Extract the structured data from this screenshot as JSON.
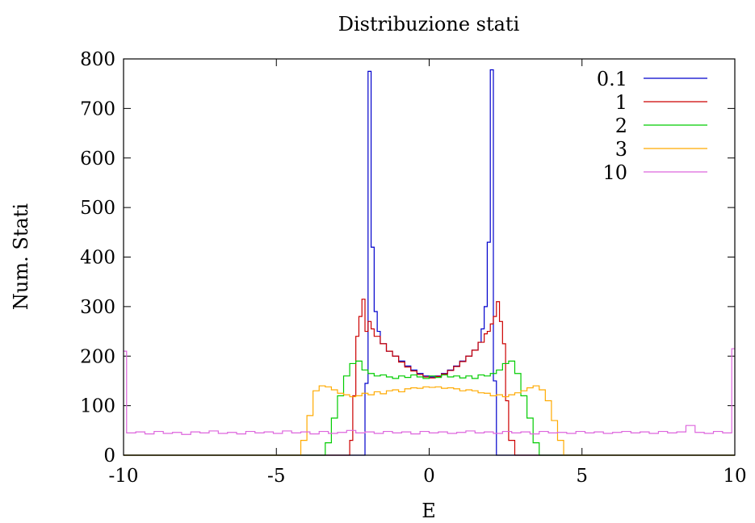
{
  "chart_data": {
    "type": "line",
    "title": "Distribuzione stati",
    "xlabel": "E",
    "ylabel": "Num. Stati",
    "xlim": [
      -10,
      10
    ],
    "ylim": [
      0,
      800
    ],
    "xticks": [
      -10,
      -5,
      0,
      5,
      10
    ],
    "xtick_labels": [
      "-10",
      "-5",
      "0",
      "5",
      "10"
    ],
    "yticks": [
      0,
      100,
      200,
      300,
      400,
      500,
      600,
      700,
      800
    ],
    "ytick_labels": [
      "0",
      "100",
      "200",
      "300",
      "400",
      "500",
      "600",
      "700",
      "800"
    ],
    "grid": false,
    "legend_position": "top-right",
    "step_style": "histogram",
    "series": [
      {
        "name": "0.1",
        "color": "#0000cc",
        "points": [
          [
            -10,
            0
          ],
          [
            -2.2,
            0
          ],
          [
            -2.1,
            145
          ],
          [
            -2.0,
            775
          ],
          [
            -1.9,
            420
          ],
          [
            -1.8,
            290
          ],
          [
            -1.7,
            250
          ],
          [
            -1.6,
            225
          ],
          [
            -1.4,
            210
          ],
          [
            -1.2,
            200
          ],
          [
            -1.0,
            190
          ],
          [
            -0.8,
            180
          ],
          [
            -0.6,
            172
          ],
          [
            -0.4,
            165
          ],
          [
            -0.2,
            160
          ],
          [
            0,
            158
          ],
          [
            0.2,
            160
          ],
          [
            0.4,
            165
          ],
          [
            0.6,
            172
          ],
          [
            0.8,
            180
          ],
          [
            1.0,
            190
          ],
          [
            1.2,
            200
          ],
          [
            1.4,
            212
          ],
          [
            1.6,
            228
          ],
          [
            1.7,
            255
          ],
          [
            1.8,
            300
          ],
          [
            1.9,
            430
          ],
          [
            2.0,
            778
          ],
          [
            2.1,
            150
          ],
          [
            2.2,
            0
          ],
          [
            10,
            0
          ]
        ]
      },
      {
        "name": "1",
        "color": "#cc0000",
        "points": [
          [
            -10,
            0
          ],
          [
            -2.8,
            0
          ],
          [
            -2.6,
            30
          ],
          [
            -2.5,
            120
          ],
          [
            -2.4,
            240
          ],
          [
            -2.3,
            280
          ],
          [
            -2.2,
            315
          ],
          [
            -2.1,
            250
          ],
          [
            -2.0,
            270
          ],
          [
            -1.9,
            255
          ],
          [
            -1.8,
            240
          ],
          [
            -1.6,
            225
          ],
          [
            -1.4,
            210
          ],
          [
            -1.2,
            200
          ],
          [
            -1.0,
            188
          ],
          [
            -0.8,
            178
          ],
          [
            -0.6,
            170
          ],
          [
            -0.4,
            163
          ],
          [
            -0.2,
            158
          ],
          [
            0,
            156
          ],
          [
            0.2,
            159
          ],
          [
            0.4,
            164
          ],
          [
            0.6,
            171
          ],
          [
            0.8,
            179
          ],
          [
            1.0,
            189
          ],
          [
            1.2,
            200
          ],
          [
            1.4,
            212
          ],
          [
            1.6,
            228
          ],
          [
            1.8,
            245
          ],
          [
            1.9,
            250
          ],
          [
            2.0,
            265
          ],
          [
            2.1,
            280
          ],
          [
            2.2,
            310
          ],
          [
            2.3,
            270
          ],
          [
            2.4,
            225
          ],
          [
            2.5,
            110
          ],
          [
            2.6,
            30
          ],
          [
            2.8,
            0
          ],
          [
            10,
            0
          ]
        ]
      },
      {
        "name": "2",
        "color": "#00cc00",
        "points": [
          [
            -10,
            0
          ],
          [
            -3.6,
            0
          ],
          [
            -3.4,
            25
          ],
          [
            -3.2,
            75
          ],
          [
            -3.0,
            120
          ],
          [
            -2.8,
            160
          ],
          [
            -2.6,
            185
          ],
          [
            -2.4,
            190
          ],
          [
            -2.2,
            172
          ],
          [
            -2.0,
            165
          ],
          [
            -1.8,
            160
          ],
          [
            -1.6,
            162
          ],
          [
            -1.4,
            158
          ],
          [
            -1.2,
            155
          ],
          [
            -1.0,
            160
          ],
          [
            -0.8,
            157
          ],
          [
            -0.6,
            162
          ],
          [
            -0.4,
            158
          ],
          [
            -0.2,
            155
          ],
          [
            0,
            160
          ],
          [
            0.2,
            157
          ],
          [
            0.4,
            162
          ],
          [
            0.6,
            158
          ],
          [
            0.8,
            160
          ],
          [
            1.0,
            156
          ],
          [
            1.2,
            160
          ],
          [
            1.4,
            155
          ],
          [
            1.6,
            162
          ],
          [
            1.8,
            160
          ],
          [
            2.0,
            165
          ],
          [
            2.2,
            172
          ],
          [
            2.4,
            185
          ],
          [
            2.6,
            190
          ],
          [
            2.8,
            165
          ],
          [
            3.0,
            120
          ],
          [
            3.2,
            75
          ],
          [
            3.4,
            25
          ],
          [
            3.6,
            0
          ],
          [
            10,
            0
          ]
        ]
      },
      {
        "name": "3",
        "color": "#ffaa00",
        "points": [
          [
            -10,
            0
          ],
          [
            -4.4,
            0
          ],
          [
            -4.2,
            30
          ],
          [
            -4.0,
            80
          ],
          [
            -3.8,
            130
          ],
          [
            -3.6,
            140
          ],
          [
            -3.4,
            138
          ],
          [
            -3.2,
            132
          ],
          [
            -3.0,
            125
          ],
          [
            -2.8,
            122
          ],
          [
            -2.6,
            118
          ],
          [
            -2.4,
            120
          ],
          [
            -2.2,
            125
          ],
          [
            -2.0,
            122
          ],
          [
            -1.8,
            128
          ],
          [
            -1.6,
            124
          ],
          [
            -1.4,
            130
          ],
          [
            -1.2,
            132
          ],
          [
            -1.0,
            128
          ],
          [
            -0.8,
            134
          ],
          [
            -0.6,
            136
          ],
          [
            -0.4,
            135
          ],
          [
            -0.2,
            138
          ],
          [
            0,
            137
          ],
          [
            0.2,
            138
          ],
          [
            0.4,
            135
          ],
          [
            0.6,
            136
          ],
          [
            0.8,
            134
          ],
          [
            1.0,
            130
          ],
          [
            1.2,
            132
          ],
          [
            1.4,
            130
          ],
          [
            1.6,
            126
          ],
          [
            1.8,
            125
          ],
          [
            2.0,
            120
          ],
          [
            2.2,
            122
          ],
          [
            2.4,
            118
          ],
          [
            2.6,
            122
          ],
          [
            2.8,
            126
          ],
          [
            3.0,
            130
          ],
          [
            3.2,
            136
          ],
          [
            3.4,
            140
          ],
          [
            3.6,
            132
          ],
          [
            3.8,
            110
          ],
          [
            4.0,
            70
          ],
          [
            4.2,
            30
          ],
          [
            4.4,
            0
          ],
          [
            10,
            0
          ]
        ]
      },
      {
        "name": "10",
        "color": "#dd66dd",
        "points": [
          [
            -10,
            210
          ],
          [
            -9.9,
            45
          ],
          [
            -9.6,
            47
          ],
          [
            -9.3,
            43
          ],
          [
            -9.0,
            48
          ],
          [
            -8.7,
            44
          ],
          [
            -8.4,
            46
          ],
          [
            -8.1,
            42
          ],
          [
            -7.8,
            47
          ],
          [
            -7.5,
            45
          ],
          [
            -7.2,
            49
          ],
          [
            -6.9,
            44
          ],
          [
            -6.6,
            46
          ],
          [
            -6.3,
            43
          ],
          [
            -6.0,
            48
          ],
          [
            -5.7,
            45
          ],
          [
            -5.4,
            47
          ],
          [
            -5.1,
            44
          ],
          [
            -4.8,
            49
          ],
          [
            -4.5,
            45
          ],
          [
            -4.2,
            47
          ],
          [
            -3.9,
            43
          ],
          [
            -3.6,
            48
          ],
          [
            -3.3,
            44
          ],
          [
            -3.0,
            46
          ],
          [
            -2.7,
            50
          ],
          [
            -2.4,
            45
          ],
          [
            -2.1,
            47
          ],
          [
            -1.8,
            44
          ],
          [
            -1.5,
            48
          ],
          [
            -1.2,
            45
          ],
          [
            -0.9,
            47
          ],
          [
            -0.6,
            43
          ],
          [
            -0.3,
            48
          ],
          [
            0,
            45
          ],
          [
            0.3,
            47
          ],
          [
            0.6,
            44
          ],
          [
            0.9,
            46
          ],
          [
            1.2,
            49
          ],
          [
            1.5,
            45
          ],
          [
            1.8,
            47
          ],
          [
            2.1,
            44
          ],
          [
            2.4,
            48
          ],
          [
            2.7,
            45
          ],
          [
            3.0,
            47
          ],
          [
            3.3,
            43
          ],
          [
            3.6,
            48
          ],
          [
            3.9,
            45
          ],
          [
            4.2,
            46
          ],
          [
            4.5,
            44
          ],
          [
            4.8,
            48
          ],
          [
            5.1,
            45
          ],
          [
            5.4,
            47
          ],
          [
            5.7,
            44
          ],
          [
            6.0,
            46
          ],
          [
            6.3,
            48
          ],
          [
            6.6,
            45
          ],
          [
            6.9,
            47
          ],
          [
            7.2,
            44
          ],
          [
            7.5,
            48
          ],
          [
            7.8,
            45
          ],
          [
            8.1,
            47
          ],
          [
            8.4,
            60
          ],
          [
            8.7,
            46
          ],
          [
            9.0,
            44
          ],
          [
            9.3,
            48
          ],
          [
            9.6,
            45
          ],
          [
            9.9,
            215
          ],
          [
            10,
            215
          ]
        ]
      }
    ]
  }
}
